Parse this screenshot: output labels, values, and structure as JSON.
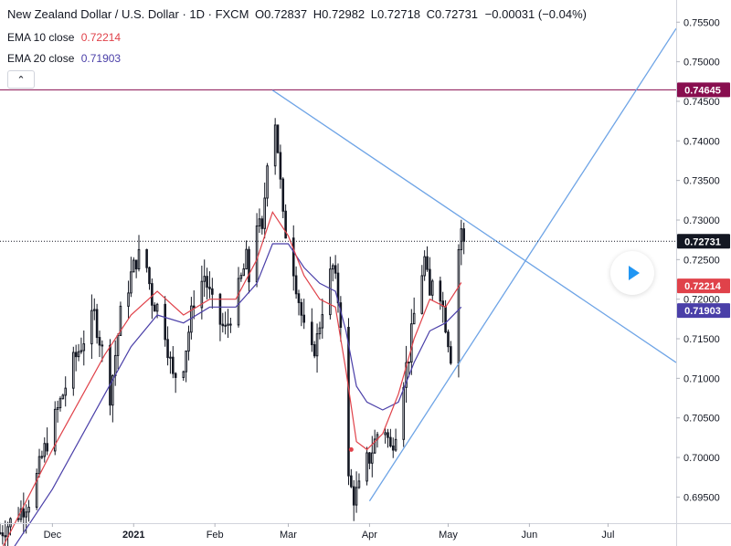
{
  "header": {
    "symbol": "New Zealand Dollar / U.S. Dollar · 1D · FXCM",
    "open_key": "O",
    "open": "0.72837",
    "high_key": "H",
    "high": "0.72982",
    "low_key": "L",
    "low": "0.72718",
    "close_key": "C",
    "close": "0.72731",
    "change": "−0.00031 (−0.04%)"
  },
  "indicators": [
    {
      "label": "EMA 10 close",
      "value": "0.72214",
      "color": "#e0424a"
    },
    {
      "label": "EMA 20 close",
      "value": "0.71903",
      "color": "#4a3fa8"
    }
  ],
  "collapse_icon": "chevron-up-icon",
  "play_icon": "play-icon",
  "chart_data": {
    "type": "candlestick",
    "colors": {
      "candle": "#131722",
      "ema10": "#e0424a",
      "ema20": "#4a3fa8",
      "trendline": "#6ea4e6",
      "hline": "#880e4f",
      "price_line": "#131722"
    },
    "x_labels": [
      {
        "label": "Dec",
        "day": 20
      },
      {
        "label": "2021",
        "day": 51
      },
      {
        "label": "Feb",
        "day": 82
      },
      {
        "label": "Mar",
        "day": 110
      },
      {
        "label": "Apr",
        "day": 141
      },
      {
        "label": "May",
        "day": 171
      },
      {
        "label": "Jun",
        "day": 202
      },
      {
        "label": "Jul",
        "day": 232
      }
    ],
    "x_range": [
      0,
      258
    ],
    "y_ticks": [
      "0.69500",
      "0.70000",
      "0.70500",
      "0.71000",
      "0.71500",
      "0.72000",
      "0.72500",
      "0.73000",
      "0.73500",
      "0.74000",
      "0.74500",
      "0.75000",
      "0.75500"
    ],
    "y_range": [
      0.6917,
      0.7578
    ],
    "price_labels": [
      {
        "value": "0.74645",
        "bg": "#880e4f",
        "fg": "#ffffff"
      },
      {
        "value": "0.72731",
        "bg": "#131722",
        "fg": "#ffffff"
      },
      {
        "value": "0.72214",
        "bg": "#e0424a",
        "fg": "#ffffff"
      },
      {
        "value": "0.71903",
        "bg": "#4a3fa8",
        "fg": "#ffffff"
      }
    ],
    "horizontal_line": 0.74645,
    "last_price": 0.72731,
    "trendlines": [
      {
        "x1": 104,
        "y1": 0.7464,
        "x2": 258,
        "y2": 0.712
      },
      {
        "x1": 141,
        "y1": 0.6945,
        "x2": 258,
        "y2": 0.7542
      }
    ],
    "points": [
      [
        0,
        0.6905
      ],
      [
        6,
        0.6925
      ],
      [
        12,
        0.695
      ],
      [
        16,
        0.7
      ],
      [
        20,
        0.704
      ],
      [
        24,
        0.708
      ],
      [
        28,
        0.712
      ],
      [
        32,
        0.715
      ],
      [
        36,
        0.718
      ],
      [
        40,
        0.712
      ],
      [
        42,
        0.708
      ],
      [
        46,
        0.718
      ],
      [
        50,
        0.723
      ],
      [
        52,
        0.725
      ],
      [
        55,
        0.726
      ],
      [
        58,
        0.72
      ],
      [
        62,
        0.718
      ],
      [
        66,
        0.71
      ],
      [
        70,
        0.712
      ],
      [
        74,
        0.72
      ],
      [
        78,
        0.723
      ],
      [
        82,
        0.718
      ],
      [
        86,
        0.716
      ],
      [
        90,
        0.72
      ],
      [
        94,
        0.725
      ],
      [
        96,
        0.72
      ],
      [
        98,
        0.73
      ],
      [
        100,
        0.728
      ],
      [
        102,
        0.738
      ],
      [
        104,
        0.7464
      ],
      [
        106,
        0.739
      ],
      [
        108,
        0.73
      ],
      [
        112,
        0.724
      ],
      [
        115,
        0.718
      ],
      [
        118,
        0.712
      ],
      [
        121,
        0.715
      ],
      [
        124,
        0.721
      ],
      [
        127,
        0.724
      ],
      [
        129,
        0.72
      ],
      [
        131,
        0.715
      ],
      [
        133,
        0.697
      ],
      [
        135,
        0.695
      ],
      [
        137,
        0.696
      ],
      [
        139,
        0.699
      ],
      [
        141,
        0.7
      ],
      [
        143,
        0.702
      ],
      [
        146,
        0.705
      ],
      [
        149,
        0.701
      ],
      [
        152,
        0.705
      ],
      [
        154,
        0.71
      ],
      [
        156,
        0.713
      ],
      [
        158,
        0.718
      ],
      [
        160,
        0.722
      ],
      [
        162,
        0.725
      ],
      [
        164,
        0.72
      ],
      [
        166,
        0.726
      ],
      [
        168,
        0.721
      ],
      [
        170,
        0.717
      ],
      [
        172,
        0.713
      ],
      [
        174,
        0.724
      ],
      [
        176,
        0.729
      ],
      [
        177,
        0.7273
      ]
    ],
    "ema10": [
      [
        0,
        0.688
      ],
      [
        20,
        0.701
      ],
      [
        40,
        0.713
      ],
      [
        50,
        0.718
      ],
      [
        60,
        0.721
      ],
      [
        70,
        0.718
      ],
      [
        80,
        0.72
      ],
      [
        90,
        0.72
      ],
      [
        98,
        0.725
      ],
      [
        104,
        0.731
      ],
      [
        110,
        0.728
      ],
      [
        116,
        0.723
      ],
      [
        122,
        0.72
      ],
      [
        128,
        0.719
      ],
      [
        132,
        0.711
      ],
      [
        136,
        0.702
      ],
      [
        140,
        0.701
      ],
      [
        146,
        0.703
      ],
      [
        152,
        0.708
      ],
      [
        158,
        0.715
      ],
      [
        164,
        0.72
      ],
      [
        170,
        0.719
      ],
      [
        176,
        0.7221
      ]
    ],
    "ema20": [
      [
        0,
        0.686
      ],
      [
        20,
        0.696
      ],
      [
        40,
        0.708
      ],
      [
        50,
        0.714
      ],
      [
        60,
        0.718
      ],
      [
        70,
        0.717
      ],
      [
        80,
        0.719
      ],
      [
        90,
        0.719
      ],
      [
        98,
        0.722
      ],
      [
        104,
        0.727
      ],
      [
        110,
        0.727
      ],
      [
        116,
        0.724
      ],
      [
        122,
        0.722
      ],
      [
        128,
        0.721
      ],
      [
        132,
        0.716
      ],
      [
        136,
        0.709
      ],
      [
        140,
        0.707
      ],
      [
        146,
        0.706
      ],
      [
        152,
        0.707
      ],
      [
        158,
        0.712
      ],
      [
        164,
        0.716
      ],
      [
        170,
        0.717
      ],
      [
        176,
        0.719
      ]
    ],
    "marker": {
      "day": 134,
      "value": 0.701,
      "color": "#e0424a"
    }
  }
}
